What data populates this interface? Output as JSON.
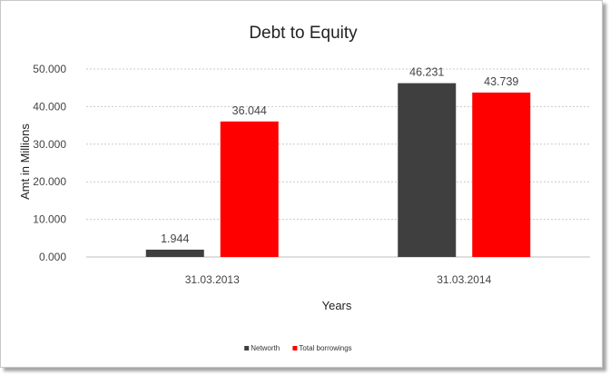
{
  "chart_data": {
    "type": "bar",
    "title": "Debt to Equity",
    "xlabel": "Years",
    "ylabel": "Amt in Millions",
    "categories": [
      "31.03.2013",
      "31.03.2014"
    ],
    "series": [
      {
        "name": "Networth",
        "color": "#3f3f3f",
        "values": [
          1.944,
          46.231
        ],
        "labels": [
          "1.944",
          "46.231"
        ]
      },
      {
        "name": "Total borrowings",
        "color": "#ff0000",
        "values": [
          36.044,
          43.739
        ],
        "labels": [
          "36.044",
          "43.739"
        ]
      }
    ],
    "ylim": [
      0,
      50
    ],
    "yticks": [
      "0.000",
      "10.000",
      "20.000",
      "30.000",
      "40.000",
      "50.000"
    ],
    "grid": true,
    "legend_position": "bottom"
  }
}
